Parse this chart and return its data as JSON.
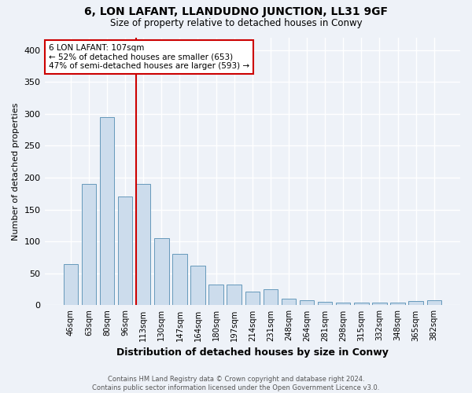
{
  "title": "6, LON LAFANT, LLANDUDNO JUNCTION, LL31 9GF",
  "subtitle": "Size of property relative to detached houses in Conwy",
  "xlabel": "Distribution of detached houses by size in Conwy",
  "ylabel": "Number of detached properties",
  "categories": [
    "46sqm",
    "63sqm",
    "80sqm",
    "96sqm",
    "113sqm",
    "130sqm",
    "147sqm",
    "164sqm",
    "180sqm",
    "197sqm",
    "214sqm",
    "231sqm",
    "248sqm",
    "264sqm",
    "281sqm",
    "298sqm",
    "315sqm",
    "332sqm",
    "348sqm",
    "365sqm",
    "382sqm"
  ],
  "values": [
    65,
    190,
    295,
    170,
    190,
    105,
    80,
    62,
    33,
    33,
    22,
    25,
    10,
    8,
    5,
    4,
    4,
    4,
    4,
    7,
    8
  ],
  "bar_color": "#ccdcec",
  "bar_edge_color": "#6699bb",
  "vline_color": "#cc0000",
  "annotation_line1": "6 LON LAFANT: 107sqm",
  "annotation_line2": "← 52% of detached houses are smaller (653)",
  "annotation_line3": "47% of semi-detached houses are larger (593) →",
  "annotation_box_color": "white",
  "annotation_box_edge": "#cc0000",
  "ylim": [
    0,
    420
  ],
  "yticks": [
    0,
    50,
    100,
    150,
    200,
    250,
    300,
    350,
    400
  ],
  "background_color": "#eef2f8",
  "grid_color": "white",
  "footer_line1": "Contains HM Land Registry data © Crown copyright and database right 2024.",
  "footer_line2": "Contains public sector information licensed under the Open Government Licence v3.0."
}
